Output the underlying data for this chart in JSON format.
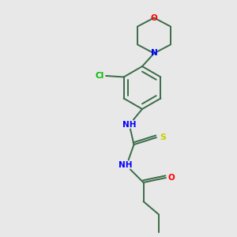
{
  "bg_color": "#e8e8e8",
  "bond_color": "#3a6b48",
  "N_color": "#0000ff",
  "O_color": "#ff0000",
  "S_color": "#cccc00",
  "Cl_color": "#00bb00",
  "line_width": 1.4,
  "figsize": [
    3.0,
    3.0
  ],
  "dpi": 100,
  "xlim": [
    0,
    10
  ],
  "ylim": [
    0,
    10
  ]
}
